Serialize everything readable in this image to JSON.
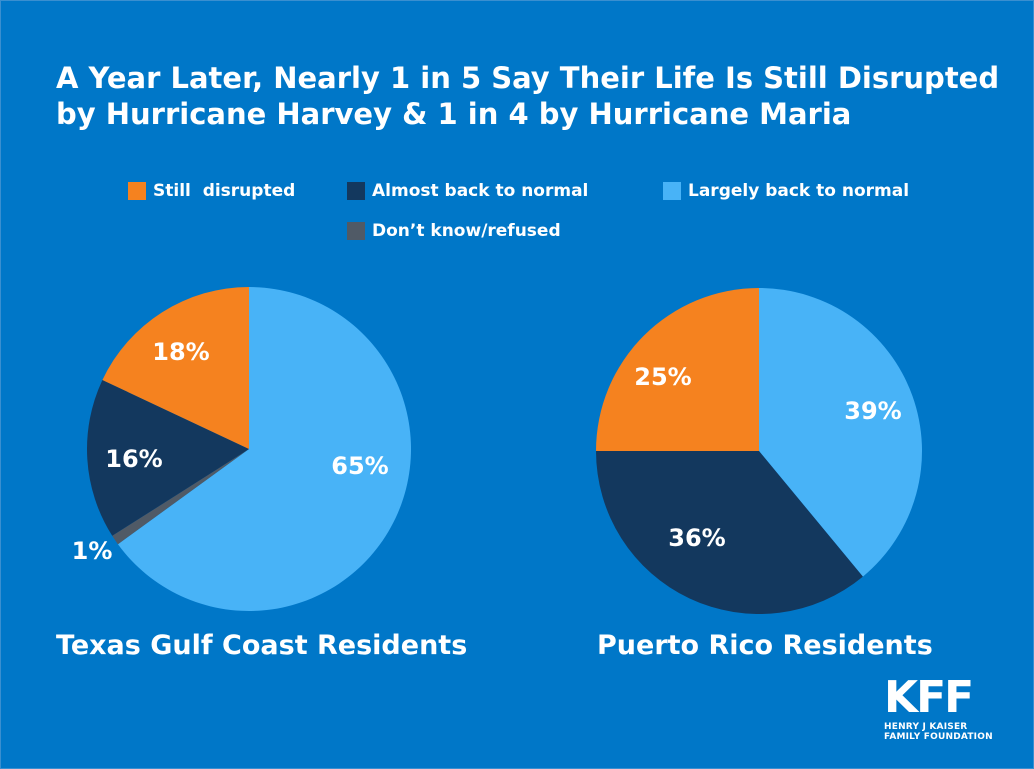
{
  "title": "A Year Later, Nearly 1 in 5 Say Their Life Is Still Disrupted by Hurricane Harvey & 1 in 4 by Hurricane Maria",
  "colors": {
    "background": "#0077c8",
    "still_disrupted": "#f5821f",
    "almost_back": "#13385e",
    "largely_back": "#48b3f7",
    "dont_know": "#505a66"
  },
  "legend": [
    {
      "label": "Still  disrupted",
      "color": "#f5821f"
    },
    {
      "label": "Almost back to normal",
      "color": "#13385e"
    },
    {
      "label": "Largely back to normal",
      "color": "#48b3f7"
    },
    {
      "label": "Don’t know/refused",
      "color": "#505a66"
    }
  ],
  "chart_data": [
    {
      "type": "pie",
      "title": "Texas Gulf Coast Residents",
      "slices": [
        {
          "label": "Largely back to normal",
          "value": 65,
          "display": "65%"
        },
        {
          "label": "Don’t know/refused",
          "value": 1,
          "display": "1%"
        },
        {
          "label": "Almost back to normal",
          "value": 16,
          "display": "16%"
        },
        {
          "label": "Still  disrupted",
          "value": 18,
          "display": "18%"
        }
      ]
    },
    {
      "type": "pie",
      "title": "Puerto Rico Residents",
      "slices": [
        {
          "label": "Largely back to normal",
          "value": 39,
          "display": "39%"
        },
        {
          "label": "Almost back to normal",
          "value": 36,
          "display": "36%"
        },
        {
          "label": "Still  disrupted",
          "value": 25,
          "display": "25%"
        }
      ]
    }
  ],
  "logo": {
    "mark": "KFF",
    "line1": "HENRY J KAISER",
    "line2": "FAMILY FOUNDATION"
  }
}
